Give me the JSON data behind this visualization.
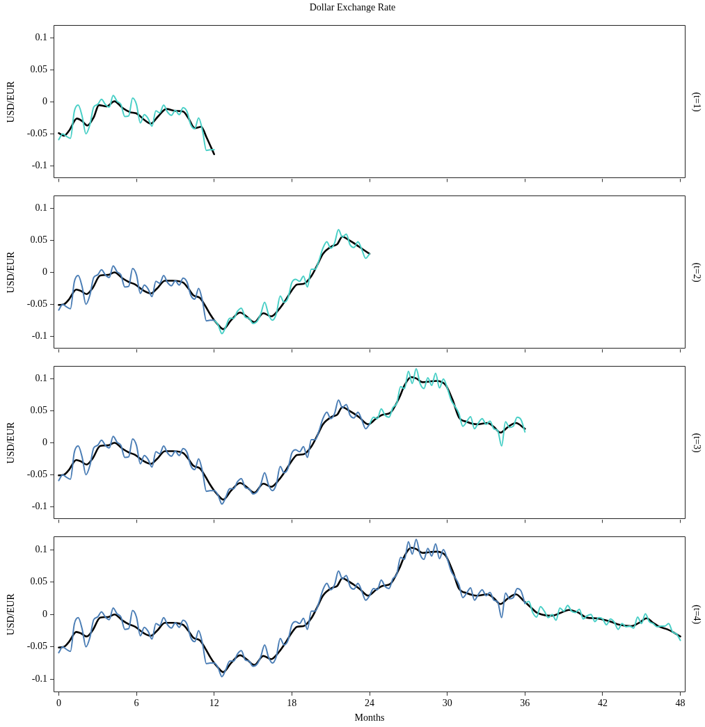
{
  "chart_data": [
    {
      "type": "line",
      "title": "Dollar Exchange Rate",
      "ylabel": "USD/EUR",
      "y2label": "(t=1)",
      "xlim": [
        -0.4,
        48.4
      ],
      "xticks": [
        0,
        6,
        12,
        18,
        24,
        30,
        36,
        42,
        48
      ],
      "ylim": [
        -0.12,
        0.12
      ],
      "yticks": [
        -0.1,
        -0.05,
        0,
        0.05,
        0.1
      ],
      "tick_labels": "y",
      "series": [
        {
          "color": "#48cfc6",
          "x": [
            0,
            0.3,
            0.6,
            0.9,
            1.2,
            1.5,
            1.8,
            2.1,
            2.4,
            2.7,
            3,
            3.3,
            3.6,
            3.9,
            4.2,
            4.5,
            4.8,
            5.1,
            5.4,
            5.7,
            6,
            6.3,
            6.6,
            6.9,
            7.2,
            7.5,
            7.8,
            8.1,
            8.4,
            8.7,
            9,
            9.3,
            9.6,
            9.9,
            10.2,
            10.5,
            10.8,
            11.1,
            11.4,
            11.7,
            12
          ],
          "values": [
            -0.059,
            -0.05,
            -0.054,
            -0.057,
            -0.015,
            -0.005,
            -0.022,
            -0.05,
            -0.036,
            -0.008,
            -0.004,
            0.004,
            -0.004,
            -0.008,
            0.01,
            0.001,
            -0.004,
            -0.023,
            -0.022,
            0.006,
            -0.004,
            -0.033,
            -0.02,
            -0.026,
            -0.038,
            -0.014,
            -0.017,
            -0.005,
            -0.016,
            -0.021,
            -0.013,
            -0.02,
            -0.009,
            -0.015,
            -0.036,
            -0.042,
            -0.025,
            -0.045,
            -0.076,
            -0.075,
            -0.075
          ]
        },
        {
          "color": "#000000",
          "x": [
            0,
            0.4,
            0.8,
            1.4,
            1.8,
            2.2,
            2.7,
            3.1,
            3.7,
            4.3,
            4.9,
            5.5,
            6,
            6.6,
            7.1,
            7.7,
            8.3,
            9,
            9.6,
            10,
            10.5,
            11,
            11.4,
            12
          ],
          "values": [
            -0.049,
            -0.053,
            -0.045,
            -0.026,
            -0.03,
            -0.037,
            -0.024,
            -0.005,
            -0.007,
            0.001,
            -0.009,
            -0.016,
            -0.018,
            -0.028,
            -0.034,
            -0.022,
            -0.011,
            -0.014,
            -0.015,
            -0.025,
            -0.041,
            -0.039,
            -0.055,
            -0.082
          ]
        }
      ]
    },
    {
      "type": "line",
      "ylabel": "USD/EUR",
      "y2label": "(t=2)",
      "xlim": [
        -0.4,
        48.4
      ],
      "xticks": [
        0,
        6,
        12,
        18,
        24,
        30,
        36,
        42,
        48
      ],
      "ylim": [
        -0.12,
        0.12
      ],
      "yticks": [
        -0.1,
        -0.05,
        0,
        0.05,
        0.1
      ],
      "tick_labels": "y",
      "series": [
        {
          "color": "#4a7db5",
          "x": [
            0,
            0.3,
            0.6,
            0.9,
            1.2,
            1.5,
            1.8,
            2.1,
            2.4,
            2.7,
            3,
            3.3,
            3.6,
            3.9,
            4.2,
            4.5,
            4.8,
            5.1,
            5.4,
            5.7,
            6,
            6.3,
            6.6,
            6.9,
            7.2,
            7.5,
            7.8,
            8.1,
            8.4,
            8.7,
            9,
            9.3,
            9.6,
            9.9,
            10.2,
            10.5,
            10.8,
            11.1,
            11.4,
            11.7,
            12
          ],
          "values": [
            -0.059,
            -0.05,
            -0.054,
            -0.057,
            -0.015,
            -0.005,
            -0.022,
            -0.05,
            -0.036,
            -0.008,
            -0.004,
            0.004,
            -0.004,
            -0.008,
            0.01,
            0.001,
            -0.004,
            -0.023,
            -0.022,
            0.006,
            -0.004,
            -0.033,
            -0.02,
            -0.026,
            -0.038,
            -0.014,
            -0.017,
            -0.005,
            -0.016,
            -0.021,
            -0.013,
            -0.02,
            -0.009,
            -0.015,
            -0.036,
            -0.042,
            -0.025,
            -0.045,
            -0.076,
            -0.075,
            -0.075
          ]
        },
        {
          "color": "#48cfc6",
          "x": [
            12,
            12.3,
            12.6,
            12.9,
            13.2,
            13.5,
            13.8,
            14.1,
            14.4,
            14.7,
            15,
            15.3,
            15.6,
            15.9,
            16.2,
            16.5,
            16.8,
            17.1,
            17.4,
            17.7,
            18,
            18.3,
            18.6,
            18.9,
            19.2,
            19.5,
            19.8,
            20.1,
            20.4,
            20.7,
            21,
            21.3,
            21.6,
            21.9,
            22.2,
            22.5,
            22.8,
            23.1,
            23.4,
            23.7,
            24
          ],
          "values": [
            -0.075,
            -0.082,
            -0.096,
            -0.085,
            -0.072,
            -0.072,
            -0.061,
            -0.056,
            -0.07,
            -0.072,
            -0.08,
            -0.077,
            -0.065,
            -0.047,
            -0.066,
            -0.075,
            -0.065,
            -0.037,
            -0.047,
            -0.04,
            -0.016,
            -0.011,
            -0.014,
            -0.006,
            -0.023,
            0.005,
            0.005,
            0.019,
            0.038,
            0.048,
            0.038,
            0.046,
            0.067,
            0.055,
            0.06,
            0.043,
            0.039,
            0.048,
            0.036,
            0.022,
            0.029
          ]
        },
        {
          "color": "#000000",
          "x": [
            0,
            0.4,
            0.8,
            1.35,
            1.7,
            2.15,
            2.6,
            3.2,
            3.8,
            4.3,
            4.9,
            5.4,
            5.9,
            6.5,
            7.1,
            7.6,
            8.2,
            8.8,
            9.6,
            10,
            10.4,
            10.9,
            11.3,
            11.7,
            12,
            12.3,
            12.7,
            13.3,
            14,
            14.5,
            15.1,
            15.8,
            16.4,
            17,
            17.5,
            18,
            18.4,
            18.9,
            19.5,
            20,
            20.4,
            21.1,
            21.5,
            21.9,
            22.3,
            22.7,
            23.2,
            24
          ],
          "values": [
            -0.051,
            -0.05,
            -0.042,
            -0.027,
            -0.029,
            -0.034,
            -0.025,
            -0.005,
            -0.004,
            0,
            -0.009,
            -0.015,
            -0.019,
            -0.028,
            -0.033,
            -0.025,
            -0.013,
            -0.013,
            -0.016,
            -0.025,
            -0.036,
            -0.04,
            -0.052,
            -0.066,
            -0.075,
            -0.082,
            -0.089,
            -0.075,
            -0.063,
            -0.069,
            -0.078,
            -0.064,
            -0.069,
            -0.058,
            -0.044,
            -0.028,
            -0.019,
            -0.018,
            -0.006,
            0.013,
            0.029,
            0.041,
            0.044,
            0.056,
            0.052,
            0.047,
            0.04,
            0.029
          ]
        }
      ]
    },
    {
      "type": "line",
      "ylabel": "USD/EUR",
      "y2label": "(t=3)",
      "xlim": [
        -0.4,
        48.4
      ],
      "xticks": [
        0,
        6,
        12,
        18,
        24,
        30,
        36,
        42,
        48
      ],
      "ylim": [
        -0.12,
        0.12
      ],
      "yticks": [
        -0.1,
        -0.05,
        0,
        0.05,
        0.1
      ],
      "tick_labels": "y",
      "series": [
        {
          "color": "#4a7db5",
          "x": [
            0,
            0.3,
            0.6,
            0.9,
            1.2,
            1.5,
            1.8,
            2.1,
            2.4,
            2.7,
            3,
            3.3,
            3.6,
            3.9,
            4.2,
            4.5,
            4.8,
            5.1,
            5.4,
            5.7,
            6,
            6.3,
            6.6,
            6.9,
            7.2,
            7.5,
            7.8,
            8.1,
            8.4,
            8.7,
            9,
            9.3,
            9.6,
            9.9,
            10.2,
            10.5,
            10.8,
            11.1,
            11.4,
            11.7,
            12,
            12.3,
            12.6,
            12.9,
            13.2,
            13.5,
            13.8,
            14.1,
            14.4,
            14.7,
            15,
            15.3,
            15.6,
            15.9,
            16.2,
            16.5,
            16.8,
            17.1,
            17.4,
            17.7,
            18,
            18.3,
            18.6,
            18.9,
            19.2,
            19.5,
            19.8,
            20.1,
            20.4,
            20.7,
            21,
            21.3,
            21.6,
            21.9,
            22.2,
            22.5,
            22.8,
            23.1,
            23.4,
            23.7,
            24
          ],
          "values": [
            -0.059,
            -0.05,
            -0.054,
            -0.057,
            -0.015,
            -0.005,
            -0.022,
            -0.05,
            -0.036,
            -0.008,
            -0.004,
            0.004,
            -0.004,
            -0.008,
            0.01,
            0.001,
            -0.004,
            -0.023,
            -0.022,
            0.006,
            -0.004,
            -0.033,
            -0.02,
            -0.026,
            -0.038,
            -0.014,
            -0.017,
            -0.005,
            -0.016,
            -0.021,
            -0.013,
            -0.02,
            -0.009,
            -0.015,
            -0.036,
            -0.042,
            -0.025,
            -0.045,
            -0.076,
            -0.075,
            -0.075,
            -0.082,
            -0.096,
            -0.085,
            -0.072,
            -0.072,
            -0.061,
            -0.056,
            -0.07,
            -0.072,
            -0.08,
            -0.077,
            -0.065,
            -0.047,
            -0.066,
            -0.075,
            -0.065,
            -0.037,
            -0.047,
            -0.04,
            -0.016,
            -0.011,
            -0.014,
            -0.006,
            -0.023,
            0.005,
            0.005,
            0.019,
            0.038,
            0.048,
            0.038,
            0.046,
            0.067,
            0.055,
            0.06,
            0.043,
            0.039,
            0.048,
            0.036,
            0.022,
            0.029
          ]
        },
        {
          "color": "#48cfc6",
          "x": [
            24,
            24.3,
            24.6,
            24.9,
            25.2,
            25.5,
            25.8,
            26.1,
            26.4,
            26.7,
            27,
            27.3,
            27.6,
            27.9,
            28.2,
            28.5,
            28.8,
            29.1,
            29.4,
            29.7,
            30,
            30.3,
            30.6,
            30.9,
            31.2,
            31.5,
            31.8,
            32.1,
            32.4,
            32.7,
            33,
            33.3,
            33.6,
            33.9,
            34.2,
            34.5,
            34.8,
            35.1,
            35.4,
            35.7,
            36
          ],
          "values": [
            0.029,
            0.04,
            0.038,
            0.053,
            0.043,
            0.04,
            0.055,
            0.062,
            0.088,
            0.085,
            0.112,
            0.093,
            0.116,
            0.093,
            0.085,
            0.102,
            0.09,
            0.109,
            0.086,
            0.1,
            0.086,
            0.067,
            0.057,
            0.046,
            0.026,
            0.033,
            0.041,
            0.022,
            0.031,
            0.038,
            0.029,
            0.034,
            0.022,
            0.019,
            -0.005,
            0.033,
            0.024,
            0.026,
            0.04,
            0.036,
            0.017
          ]
        },
        {
          "color": "#000000",
          "x": [
            0,
            0.4,
            0.8,
            1.35,
            1.7,
            2.15,
            2.6,
            3.2,
            3.8,
            4.3,
            4.9,
            5.4,
            5.9,
            6.5,
            7.1,
            7.6,
            8.2,
            8.8,
            9.6,
            10,
            10.4,
            10.9,
            11.3,
            11.7,
            12,
            12.3,
            12.7,
            13.3,
            14,
            14.5,
            15.1,
            15.8,
            16.4,
            17,
            17.5,
            18,
            18.4,
            18.9,
            19.5,
            20,
            20.4,
            21.1,
            21.5,
            21.9,
            22.3,
            22.7,
            23.2,
            23.9,
            24.5,
            25,
            25.6,
            26.3,
            26.7,
            27.2,
            27.6,
            28.1,
            28.6,
            29.2,
            29.6,
            29.9,
            30.4,
            30.9,
            31.5,
            32.3,
            33.1,
            33.6,
            34.1,
            34.7,
            35.3,
            36
          ],
          "values": [
            -0.051,
            -0.05,
            -0.042,
            -0.027,
            -0.029,
            -0.034,
            -0.025,
            -0.005,
            -0.004,
            0,
            -0.009,
            -0.015,
            -0.019,
            -0.028,
            -0.033,
            -0.025,
            -0.013,
            -0.013,
            -0.016,
            -0.025,
            -0.036,
            -0.04,
            -0.052,
            -0.066,
            -0.075,
            -0.082,
            -0.089,
            -0.075,
            -0.063,
            -0.069,
            -0.078,
            -0.064,
            -0.069,
            -0.058,
            -0.044,
            -0.028,
            -0.019,
            -0.018,
            -0.006,
            0.013,
            0.029,
            0.041,
            0.044,
            0.056,
            0.052,
            0.047,
            0.04,
            0.029,
            0.038,
            0.044,
            0.047,
            0.071,
            0.09,
            0.103,
            0.101,
            0.095,
            0.096,
            0.097,
            0.095,
            0.09,
            0.068,
            0.04,
            0.033,
            0.029,
            0.031,
            0.025,
            0.016,
            0.025,
            0.031,
            0.022
          ]
        }
      ]
    },
    {
      "type": "line",
      "xlabel": "Months",
      "ylabel": "USD/EUR",
      "y2label": "(t=4)",
      "xlim": [
        -0.4,
        48.4
      ],
      "xticks": [
        0,
        6,
        12,
        18,
        24,
        30,
        36,
        42,
        48
      ],
      "ylim": [
        -0.12,
        0.12
      ],
      "yticks": [
        -0.1,
        -0.05,
        0,
        0.05,
        0.1
      ],
      "series": [
        {
          "color": "#4a7db5",
          "x": [
            0,
            0.3,
            0.6,
            0.9,
            1.2,
            1.5,
            1.8,
            2.1,
            2.4,
            2.7,
            3,
            3.3,
            3.6,
            3.9,
            4.2,
            4.5,
            4.8,
            5.1,
            5.4,
            5.7,
            6,
            6.3,
            6.6,
            6.9,
            7.2,
            7.5,
            7.8,
            8.1,
            8.4,
            8.7,
            9,
            9.3,
            9.6,
            9.9,
            10.2,
            10.5,
            10.8,
            11.1,
            11.4,
            11.7,
            12,
            12.3,
            12.6,
            12.9,
            13.2,
            13.5,
            13.8,
            14.1,
            14.4,
            14.7,
            15,
            15.3,
            15.6,
            15.9,
            16.2,
            16.5,
            16.8,
            17.1,
            17.4,
            17.7,
            18,
            18.3,
            18.6,
            18.9,
            19.2,
            19.5,
            19.8,
            20.1,
            20.4,
            20.7,
            21,
            21.3,
            21.6,
            21.9,
            22.2,
            22.5,
            22.8,
            23.1,
            23.4,
            23.7,
            24,
            24.3,
            24.6,
            24.9,
            25.2,
            25.5,
            25.8,
            26.1,
            26.4,
            26.7,
            27,
            27.3,
            27.6,
            27.9,
            28.2,
            28.5,
            28.8,
            29.1,
            29.4,
            29.7,
            30,
            30.3,
            30.6,
            30.9,
            31.2,
            31.5,
            31.8,
            32.1,
            32.4,
            32.7,
            33,
            33.3,
            33.6,
            33.9,
            34.2,
            34.5,
            34.8,
            35.1,
            35.4,
            35.7,
            36
          ],
          "values": [
            -0.059,
            -0.05,
            -0.054,
            -0.057,
            -0.015,
            -0.005,
            -0.022,
            -0.05,
            -0.036,
            -0.008,
            -0.004,
            0.004,
            -0.004,
            -0.008,
            0.01,
            0.001,
            -0.004,
            -0.023,
            -0.022,
            0.006,
            -0.004,
            -0.033,
            -0.02,
            -0.026,
            -0.038,
            -0.014,
            -0.017,
            -0.005,
            -0.016,
            -0.021,
            -0.013,
            -0.02,
            -0.009,
            -0.015,
            -0.036,
            -0.042,
            -0.025,
            -0.045,
            -0.076,
            -0.075,
            -0.075,
            -0.082,
            -0.096,
            -0.085,
            -0.072,
            -0.072,
            -0.061,
            -0.056,
            -0.07,
            -0.072,
            -0.08,
            -0.077,
            -0.065,
            -0.047,
            -0.066,
            -0.075,
            -0.065,
            -0.037,
            -0.047,
            -0.04,
            -0.016,
            -0.011,
            -0.014,
            -0.006,
            -0.023,
            0.005,
            0.005,
            0.019,
            0.038,
            0.048,
            0.038,
            0.046,
            0.067,
            0.055,
            0.06,
            0.043,
            0.039,
            0.048,
            0.036,
            0.022,
            0.029,
            0.04,
            0.038,
            0.053,
            0.043,
            0.04,
            0.055,
            0.062,
            0.088,
            0.085,
            0.112,
            0.093,
            0.116,
            0.093,
            0.085,
            0.102,
            0.09,
            0.109,
            0.086,
            0.1,
            0.086,
            0.067,
            0.057,
            0.046,
            0.026,
            0.033,
            0.041,
            0.022,
            0.031,
            0.038,
            0.029,
            0.034,
            0.022,
            0.019,
            -0.005,
            0.033,
            0.024,
            0.026,
            0.04,
            0.036,
            0.017
          ]
        },
        {
          "color": "#48cfc6",
          "x": [
            36,
            36.3,
            36.6,
            36.9,
            37.2,
            37.5,
            37.8,
            38.1,
            38.4,
            38.7,
            39,
            39.3,
            39.6,
            39.9,
            40.2,
            40.5,
            40.8,
            41.1,
            41.4,
            41.7,
            42,
            42.3,
            42.6,
            42.9,
            43.2,
            43.5,
            43.8,
            44.1,
            44.4,
            44.7,
            45,
            45.3,
            45.6,
            45.9,
            46.2,
            46.5,
            46.8,
            47.1,
            47.4,
            47.7,
            48
          ],
          "values": [
            0.017,
            0.02,
            0.003,
            -0.004,
            0.012,
            0.005,
            -0.005,
            0,
            -0.009,
            0.01,
            0.005,
            0.014,
            0.005,
            0.003,
            0.008,
            -0.007,
            -0.002,
            0,
            -0.011,
            -0.005,
            -0.007,
            -0.016,
            -0.007,
            -0.012,
            -0.023,
            -0.014,
            -0.019,
            -0.018,
            -0.021,
            -0.004,
            -0.014,
            0.001,
            -0.011,
            -0.014,
            -0.019,
            -0.018,
            -0.018,
            -0.014,
            -0.027,
            -0.03,
            -0.04
          ]
        },
        {
          "color": "#000000",
          "x": [
            0,
            0.4,
            0.8,
            1.35,
            1.7,
            2.15,
            2.6,
            3.2,
            3.8,
            4.3,
            4.9,
            5.4,
            5.9,
            6.5,
            7.1,
            7.6,
            8.2,
            8.8,
            9.6,
            10,
            10.4,
            10.9,
            11.3,
            11.7,
            12,
            12.3,
            12.7,
            13.3,
            14,
            14.5,
            15.1,
            15.8,
            16.4,
            17,
            17.5,
            18,
            18.4,
            18.9,
            19.5,
            20,
            20.4,
            21.1,
            21.5,
            21.9,
            22.3,
            22.7,
            23.2,
            23.9,
            24.5,
            25,
            25.6,
            26.3,
            26.7,
            27.2,
            27.6,
            28.1,
            28.6,
            29.2,
            29.6,
            29.9,
            30.4,
            30.9,
            31.5,
            32.3,
            33.1,
            33.6,
            34.1,
            34.7,
            35.3,
            35.9,
            36.4,
            36.9,
            37.5,
            38.1,
            38.7,
            39.4,
            40.1,
            40.8,
            41.5,
            42.6,
            43.3,
            44.2,
            44.8,
            45.4,
            45.9,
            46.4,
            47,
            47.5,
            48
          ],
          "values": [
            -0.051,
            -0.05,
            -0.042,
            -0.027,
            -0.029,
            -0.034,
            -0.025,
            -0.005,
            -0.004,
            0,
            -0.009,
            -0.015,
            -0.019,
            -0.028,
            -0.033,
            -0.025,
            -0.013,
            -0.013,
            -0.016,
            -0.025,
            -0.036,
            -0.04,
            -0.052,
            -0.066,
            -0.075,
            -0.082,
            -0.089,
            -0.075,
            -0.063,
            -0.069,
            -0.078,
            -0.064,
            -0.069,
            -0.058,
            -0.044,
            -0.028,
            -0.019,
            -0.018,
            -0.006,
            0.013,
            0.029,
            0.041,
            0.044,
            0.056,
            0.052,
            0.047,
            0.04,
            0.029,
            0.038,
            0.044,
            0.047,
            0.071,
            0.09,
            0.103,
            0.101,
            0.095,
            0.096,
            0.097,
            0.095,
            0.09,
            0.068,
            0.04,
            0.033,
            0.029,
            0.031,
            0.025,
            0.016,
            0.025,
            0.031,
            0.021,
            0.012,
            0.003,
            -0.001,
            -0.002,
            0.002,
            0.007,
            0.003,
            -0.005,
            -0.006,
            -0.011,
            -0.016,
            -0.018,
            -0.013,
            -0.006,
            -0.013,
            -0.019,
            -0.023,
            -0.028,
            -0.034
          ]
        }
      ]
    }
  ]
}
